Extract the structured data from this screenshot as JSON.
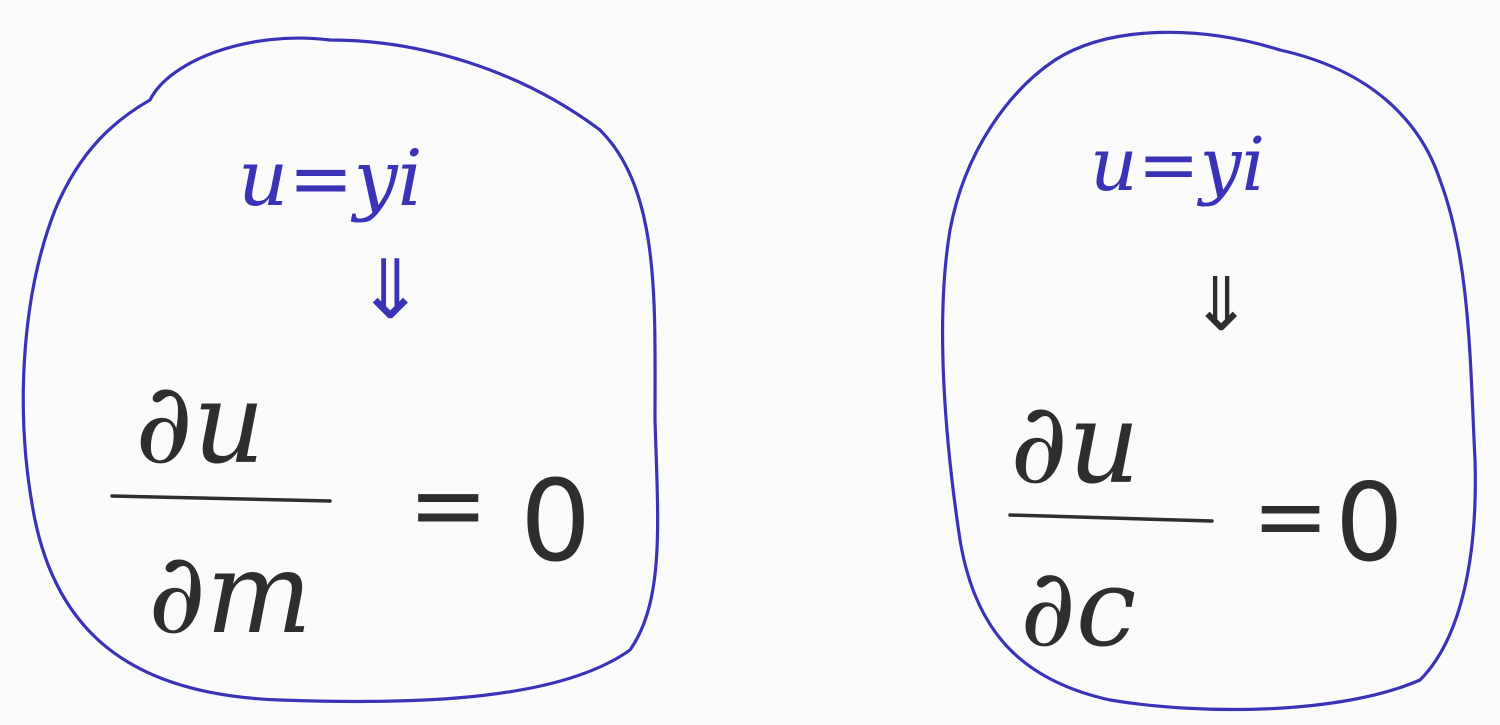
{
  "colors": {
    "paper": "#fbfbfb",
    "blue_ink": "#3a33b8",
    "black_ink": "#2e2e30"
  },
  "blobs": [
    {
      "condition": "u=yi",
      "arrow": "⇓",
      "numerator": "∂u",
      "denominator": "∂m",
      "equals": "=",
      "rhs": "0"
    },
    {
      "condition": "u=yi",
      "arrow": "⇓",
      "numerator": "∂u",
      "denominator": "∂c",
      "equals": "=",
      "rhs": "0"
    }
  ]
}
